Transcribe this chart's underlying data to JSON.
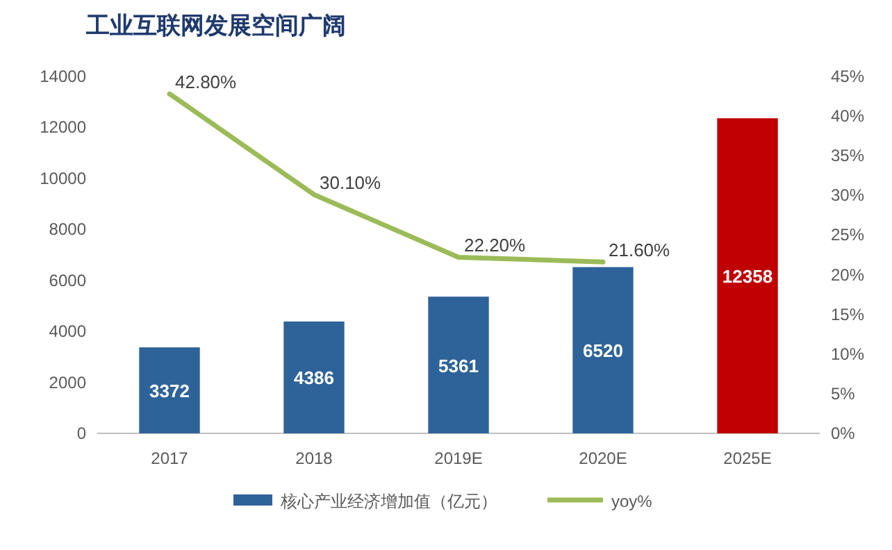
{
  "chart_data": {
    "type": "bar",
    "title": "工业互联网发展空间广阔",
    "categories": [
      "2017",
      "2018",
      "2019E",
      "2020E",
      "2025E"
    ],
    "series": [
      {
        "name": "核心产业经济增加值（亿元）",
        "color": "#2e6399",
        "colors": [
          "#2e6399",
          "#2e6399",
          "#2e6399",
          "#2e6399",
          "#c00000"
        ],
        "values": [
          3372,
          4386,
          5361,
          6520,
          12358
        ],
        "data_labels": true
      },
      {
        "name": "yoy%",
        "type": "line",
        "axis": "y2",
        "color": "#9bbb59",
        "values": [
          42.8,
          30.1,
          22.2,
          21.6,
          null
        ],
        "value_labels": [
          "42.80%",
          "30.10%",
          "22.20%",
          "21.60%",
          null
        ],
        "marker": "none",
        "line_style": "solid"
      }
    ],
    "ylim": [
      0,
      14000
    ],
    "yticks": [
      0,
      2000,
      4000,
      6000,
      8000,
      10000,
      12000,
      14000
    ],
    "y2lim": [
      0,
      45
    ],
    "y2ticks": [
      {
        "value": 0,
        "label": "0%"
      },
      {
        "value": 5,
        "label": "5%"
      },
      {
        "value": 10,
        "label": "10%"
      },
      {
        "value": 15,
        "label": "15%"
      },
      {
        "value": 20,
        "label": "20%"
      },
      {
        "value": 25,
        "label": "25%"
      },
      {
        "value": 30,
        "label": "30%"
      },
      {
        "value": 35,
        "label": "35%"
      },
      {
        "value": 40,
        "label": "40%"
      },
      {
        "value": 45,
        "label": "45%"
      }
    ],
    "grid": false,
    "legend": "bottom"
  }
}
